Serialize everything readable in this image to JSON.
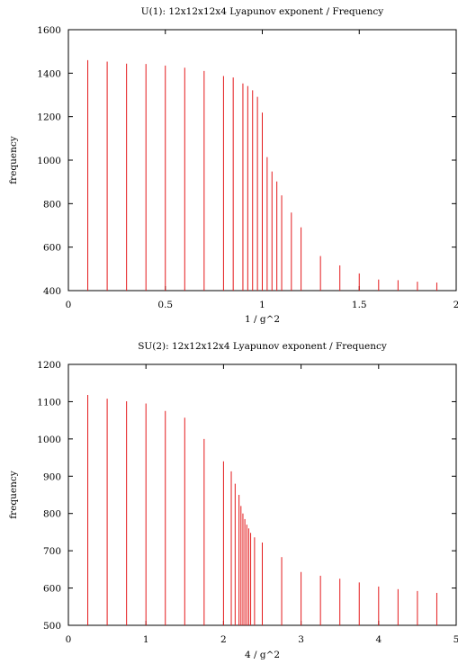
{
  "chart_data": [
    {
      "type": "bar",
      "title": "U(1):   12x12x12x4 Lyapunov exponent / Frequency",
      "xlabel": "1 / g^2",
      "ylabel": "frequency",
      "xlim": [
        0,
        2
      ],
      "ylim": [
        400,
        1600
      ],
      "xticks": [
        "0",
        "0.5",
        "1",
        "1.5",
        "2"
      ],
      "yticks": [
        "400",
        "600",
        "800",
        "1000",
        "1200",
        "1400",
        "1600"
      ],
      "color": "#e41a1c",
      "x": [
        0.1,
        0.2,
        0.3,
        0.4,
        0.5,
        0.6,
        0.7,
        0.8,
        0.85,
        0.9,
        0.925,
        0.95,
        0.975,
        1.0,
        1.025,
        1.05,
        1.075,
        1.1,
        1.15,
        1.2,
        1.3,
        1.4,
        1.5,
        1.6,
        1.7,
        1.8,
        1.9
      ],
      "values": [
        1460,
        1453,
        1444,
        1442,
        1435,
        1425,
        1410,
        1387,
        1380,
        1353,
        1341,
        1321,
        1291,
        1219,
        1014,
        948,
        902,
        838,
        759,
        691,
        559,
        516,
        479,
        451,
        448,
        441,
        437
      ]
    },
    {
      "type": "bar",
      "title": "SU(2):   12x12x12x4 Lyapunov exponent / Frequency",
      "xlabel": "4 / g^2",
      "ylabel": "frequency",
      "xlim": [
        0,
        5
      ],
      "ylim": [
        500,
        1200
      ],
      "xticks": [
        "0",
        "1",
        "2",
        "3",
        "4",
        "5"
      ],
      "yticks": [
        "500",
        "600",
        "700",
        "800",
        "900",
        "1000",
        "1100",
        "1200"
      ],
      "color": "#e41a1c",
      "x": [
        0.25,
        0.5,
        0.75,
        1.0,
        1.25,
        1.5,
        1.75,
        2.0,
        2.1,
        2.15,
        2.2,
        2.225,
        2.25,
        2.275,
        2.3,
        2.325,
        2.35,
        2.4,
        2.5,
        2.75,
        3.0,
        3.25,
        3.5,
        3.75,
        4.0,
        4.25,
        4.5,
        4.75
      ],
      "values": [
        1118,
        1108,
        1101,
        1095,
        1075,
        1057,
        1000,
        940,
        913,
        880,
        850,
        820,
        800,
        785,
        770,
        760,
        748,
        736,
        722,
        683,
        643,
        633,
        625,
        615,
        604,
        597,
        592,
        587
      ]
    }
  ]
}
